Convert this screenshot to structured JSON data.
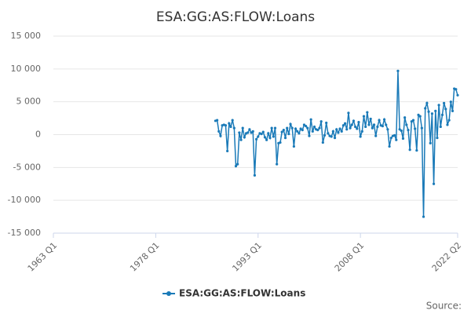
{
  "chart_data": {
    "type": "line",
    "title": "ESA:GG:AS:FLOW:Loans",
    "source": "Source:",
    "categories": [
      "1963 Q1",
      null,
      null,
      null,
      null,
      null,
      null,
      null,
      null,
      null,
      null,
      null,
      null,
      null,
      null,
      null,
      null,
      null,
      null,
      null,
      null,
      null,
      null,
      null,
      null,
      null,
      null,
      null,
      null,
      null,
      null,
      null,
      null,
      null,
      null,
      null,
      null,
      null,
      null,
      null,
      null,
      null,
      null,
      null,
      null,
      null,
      null,
      null,
      null,
      null,
      null,
      null,
      null,
      null,
      null,
      null,
      null,
      null,
      null,
      null,
      "1978 Q1",
      null,
      null,
      null,
      null,
      null,
      null,
      null,
      null,
      null,
      null,
      null,
      null,
      null,
      null,
      null,
      null,
      null,
      null,
      null,
      null,
      null,
      null,
      null,
      null,
      null,
      null,
      null,
      null,
      null,
      null,
      null,
      null,
      null,
      null,
      null,
      null,
      null,
      null,
      null,
      null,
      null,
      null,
      null,
      null,
      null,
      null,
      null,
      null,
      null,
      null,
      null,
      null,
      null,
      null,
      null,
      null,
      null,
      null,
      null,
      "1993 Q1",
      null,
      null,
      null,
      null,
      null,
      null,
      null,
      null,
      null,
      null,
      null,
      null,
      null,
      null,
      null,
      null,
      null,
      null,
      null,
      null,
      null,
      null,
      null,
      null,
      null,
      null,
      null,
      null,
      null,
      null,
      null,
      null,
      null,
      null,
      null,
      null,
      null,
      null,
      null,
      null,
      null,
      null,
      null,
      null,
      null,
      null,
      null,
      null,
      null,
      null,
      null,
      null,
      null,
      null,
      null,
      null,
      null,
      null,
      null,
      "2008 Q1",
      null,
      null,
      null,
      null,
      null,
      null,
      null,
      null,
      null,
      null,
      null,
      null,
      null,
      null,
      null,
      null,
      null,
      null,
      null,
      null,
      null,
      null,
      null,
      null,
      null,
      null,
      null,
      null,
      null,
      null,
      null,
      null,
      null,
      null,
      null,
      null,
      null,
      null,
      null,
      null,
      null,
      null,
      null,
      null,
      null,
      null,
      null,
      null,
      null,
      null,
      null,
      null,
      null,
      null,
      null,
      null,
      "2022 Q2"
    ],
    "series": [
      {
        "name": "ESA:GG:AS:FLOW:Loans",
        "color": "#1a7ab8",
        "values": [
          null,
          null,
          null,
          null,
          null,
          null,
          null,
          null,
          null,
          null,
          null,
          null,
          null,
          null,
          null,
          null,
          null,
          null,
          null,
          null,
          null,
          null,
          null,
          null,
          null,
          null,
          null,
          null,
          null,
          null,
          null,
          null,
          null,
          null,
          null,
          null,
          null,
          null,
          null,
          null,
          null,
          null,
          null,
          null,
          null,
          null,
          null,
          null,
          null,
          null,
          null,
          null,
          null,
          null,
          null,
          null,
          null,
          null,
          null,
          null,
          null,
          null,
          null,
          null,
          null,
          null,
          null,
          null,
          null,
          null,
          null,
          null,
          null,
          null,
          null,
          null,
          null,
          null,
          null,
          null,
          null,
          null,
          null,
          null,
          null,
          null,
          null,
          null,
          null,
          null,
          null,
          null,
          null,
          null,
          null,
          2100,
          2200,
          500,
          -200,
          1400,
          1500,
          1400,
          -2500,
          1700,
          1200,
          2200,
          1000,
          -4800,
          -4500,
          300,
          -800,
          1000,
          -400,
          200,
          300,
          800,
          300,
          500,
          -6200,
          -700,
          -300,
          200,
          100,
          400,
          -400,
          -800,
          200,
          -500,
          1000,
          -300,
          1000,
          -4500,
          -1300,
          -1200,
          400,
          700,
          -500,
          1000,
          100,
          1600,
          1000,
          -1800,
          900,
          500,
          200,
          900,
          700,
          1500,
          1300,
          1000,
          -200,
          2300,
          500,
          1200,
          800,
          700,
          1000,
          2000,
          -1200,
          -100,
          1800,
          200,
          -200,
          -300,
          500,
          -500,
          800,
          300,
          900,
          500,
          1400,
          1700,
          800,
          3300,
          1000,
          1500,
          2100,
          1200,
          900,
          1900,
          -300,
          500,
          2800,
          1200,
          3400,
          1500,
          2400,
          1000,
          1500,
          -200,
          1200,
          2200,
          1400,
          1300,
          2300,
          1500,
          800,
          -1800,
          -500,
          -200,
          -100,
          -800,
          9700,
          800,
          600,
          -600,
          2600,
          1500,
          700,
          -2300,
          2000,
          2200,
          900,
          -2400,
          3000,
          2800,
          1000,
          -12500,
          4000,
          4800,
          3500,
          -1300,
          3200,
          -7500,
          3600,
          -500,
          4500,
          1200,
          3000,
          4800,
          3900,
          1500,
          2200,
          5000,
          3600,
          7000,
          6900,
          6000
        ]
      }
    ],
    "ylim": [
      -15000,
      15000
    ],
    "yticks": [
      {
        "value": -15000,
        "label": "-15 000"
      },
      {
        "value": -10000,
        "label": "-10 000"
      },
      {
        "value": -5000,
        "label": "-5 000"
      },
      0,
      {
        "value": 5000,
        "label": "5 000"
      },
      {
        "value": 10000,
        "label": "10 000"
      },
      {
        "value": 15000,
        "label": "15 000"
      }
    ],
    "grid": true,
    "legend": "bottom"
  }
}
